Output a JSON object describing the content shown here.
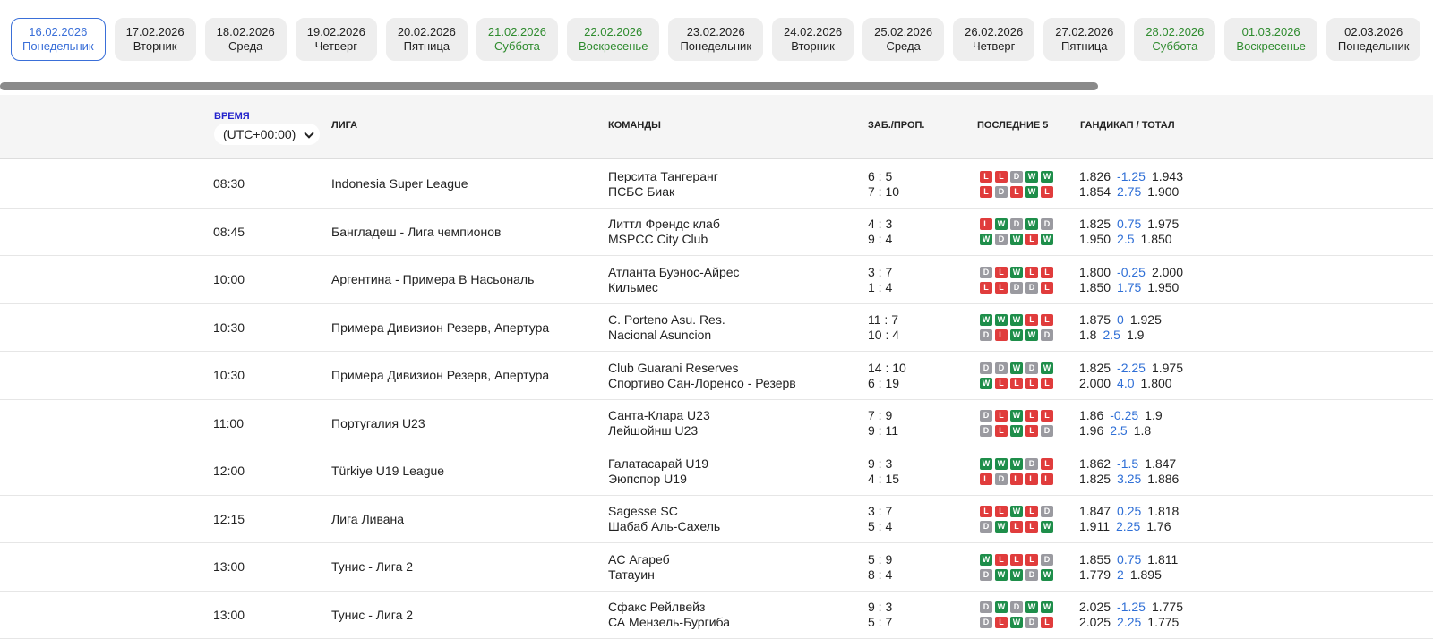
{
  "dates": [
    {
      "date": "16.02.2026",
      "day": "Понедельник",
      "selected": true
    },
    {
      "date": "17.02.2026",
      "day": "Вторник"
    },
    {
      "date": "18.02.2026",
      "day": "Среда"
    },
    {
      "date": "19.02.2026",
      "day": "Четверг"
    },
    {
      "date": "20.02.2026",
      "day": "Пятница"
    },
    {
      "date": "21.02.2026",
      "day": "Суббота",
      "weekend": true
    },
    {
      "date": "22.02.2026",
      "day": "Воскресенье",
      "weekend": true
    },
    {
      "date": "23.02.2026",
      "day": "Понедельник"
    },
    {
      "date": "24.02.2026",
      "day": "Вторник"
    },
    {
      "date": "25.02.2026",
      "day": "Среда"
    },
    {
      "date": "26.02.2026",
      "day": "Четверг"
    },
    {
      "date": "27.02.2026",
      "day": "Пятница"
    },
    {
      "date": "28.02.2026",
      "day": "Суббота",
      "weekend": true
    },
    {
      "date": "01.03.2026",
      "day": "Воскресенье",
      "weekend": true
    },
    {
      "date": "02.03.2026",
      "day": "Понедельник"
    }
  ],
  "header": {
    "time": "ВРЕМЯ",
    "timezone": "(UTC+00:00)",
    "league": "ЛИГА",
    "teams": "КОМАНДЫ",
    "goals": "ЗАБ./ПРОП.",
    "last5": "ПОСЛЕДНИЕ 5",
    "odds": "ГАНДИКАП / ТОТАЛ"
  },
  "matches": [
    {
      "time": "08:30",
      "league": "Indonesia Super League",
      "teams": [
        "Персита Тангеранг",
        "ПСБС Биак"
      ],
      "goals": [
        "6 : 5",
        "7 : 10"
      ],
      "form": [
        [
          "L",
          "L",
          "D",
          "W",
          "W"
        ],
        [
          "L",
          "D",
          "L",
          "W",
          "L"
        ]
      ],
      "odds": [
        [
          "1.826",
          "-1.25",
          "1.943"
        ],
        [
          "1.854",
          "2.75",
          "1.900"
        ]
      ]
    },
    {
      "time": "08:45",
      "league": "Бангладеш - Лига чемпионов",
      "teams": [
        "Литтл Френдс клаб",
        "MSPCC City Club"
      ],
      "goals": [
        "4 : 3",
        "9 : 4"
      ],
      "form": [
        [
          "L",
          "W",
          "D",
          "W",
          "D"
        ],
        [
          "W",
          "D",
          "W",
          "L",
          "W"
        ]
      ],
      "odds": [
        [
          "1.825",
          "0.75",
          "1.975"
        ],
        [
          "1.950",
          "2.5",
          "1.850"
        ]
      ]
    },
    {
      "time": "10:00",
      "league": "Аргентина - Примера B Насьональ",
      "teams": [
        "Атланта Буэнос-Айрес",
        "Кильмес"
      ],
      "goals": [
        "3 : 7",
        "1 : 4"
      ],
      "form": [
        [
          "D",
          "L",
          "W",
          "L",
          "L"
        ],
        [
          "L",
          "L",
          "D",
          "D",
          "L"
        ]
      ],
      "odds": [
        [
          "1.800",
          "-0.25",
          "2.000"
        ],
        [
          "1.850",
          "1.75",
          "1.950"
        ]
      ]
    },
    {
      "time": "10:30",
      "league": "Примера Дивизион Резерв, Апертура",
      "teams": [
        "C. Porteno Asu. Res.",
        "Nacional Asuncion"
      ],
      "goals": [
        "11 : 7",
        "10 : 4"
      ],
      "form": [
        [
          "W",
          "W",
          "W",
          "L",
          "L"
        ],
        [
          "D",
          "L",
          "W",
          "W",
          "D"
        ]
      ],
      "odds": [
        [
          "1.875",
          "0",
          "1.925"
        ],
        [
          "1.8",
          "2.5",
          "1.9"
        ]
      ]
    },
    {
      "time": "10:30",
      "league": "Примера Дивизион Резерв, Апертура",
      "teams": [
        "Club Guarani Reserves",
        "Спортиво Сан-Лоренсо - Резерв"
      ],
      "goals": [
        "14 : 10",
        "6 : 19"
      ],
      "form": [
        [
          "D",
          "D",
          "W",
          "D",
          "W"
        ],
        [
          "W",
          "L",
          "L",
          "L",
          "L"
        ]
      ],
      "odds": [
        [
          "1.825",
          "-2.25",
          "1.975"
        ],
        [
          "2.000",
          "4.0",
          "1.800"
        ]
      ]
    },
    {
      "time": "11:00",
      "league": "Португалия U23",
      "teams": [
        "Санта-Клара U23",
        "Лейшойнш U23"
      ],
      "goals": [
        "7 : 9",
        "9 : 11"
      ],
      "form": [
        [
          "D",
          "L",
          "W",
          "L",
          "L"
        ],
        [
          "D",
          "L",
          "W",
          "L",
          "D"
        ]
      ],
      "odds": [
        [
          "1.86",
          "-0.25",
          "1.9"
        ],
        [
          "1.96",
          "2.5",
          "1.8"
        ]
      ]
    },
    {
      "time": "12:00",
      "league": "Türkiye U19 League",
      "teams": [
        "Галатасарай U19",
        "Эюпспор U19"
      ],
      "goals": [
        "9 : 3",
        "4 : 15"
      ],
      "form": [
        [
          "W",
          "W",
          "W",
          "D",
          "L"
        ],
        [
          "L",
          "D",
          "L",
          "L",
          "L"
        ]
      ],
      "odds": [
        [
          "1.862",
          "-1.5",
          "1.847"
        ],
        [
          "1.825",
          "3.25",
          "1.886"
        ]
      ]
    },
    {
      "time": "12:15",
      "league": "Лига Ливана",
      "teams": [
        "Sagesse SC",
        "Шабаб Аль-Сахель"
      ],
      "goals": [
        "3 : 7",
        "5 : 4"
      ],
      "form": [
        [
          "L",
          "L",
          "W",
          "L",
          "D"
        ],
        [
          "D",
          "W",
          "L",
          "L",
          "W"
        ]
      ],
      "odds": [
        [
          "1.847",
          "0.25",
          "1.818"
        ],
        [
          "1.911",
          "2.25",
          "1.76"
        ]
      ]
    },
    {
      "time": "13:00",
      "league": "Тунис - Лига 2",
      "teams": [
        "AC Агареб",
        "Татауин"
      ],
      "goals": [
        "5 : 9",
        "8 : 4"
      ],
      "form": [
        [
          "W",
          "L",
          "L",
          "L",
          "D"
        ],
        [
          "D",
          "W",
          "W",
          "D",
          "W"
        ]
      ],
      "odds": [
        [
          "1.855",
          "0.75",
          "1.811"
        ],
        [
          "1.779",
          "2",
          "1.895"
        ]
      ]
    },
    {
      "time": "13:00",
      "league": "Тунис - Лига 2",
      "teams": [
        "Сфакс Рейлвейз",
        "СА Мензель-Бургиба"
      ],
      "goals": [
        "9 : 3",
        "5 : 7"
      ],
      "form": [
        [
          "D",
          "W",
          "D",
          "W",
          "W"
        ],
        [
          "D",
          "L",
          "W",
          "D",
          "L"
        ]
      ],
      "odds": [
        [
          "2.025",
          "-1.25",
          "1.775"
        ],
        [
          "2.025",
          "2.25",
          "1.775"
        ]
      ]
    }
  ]
}
